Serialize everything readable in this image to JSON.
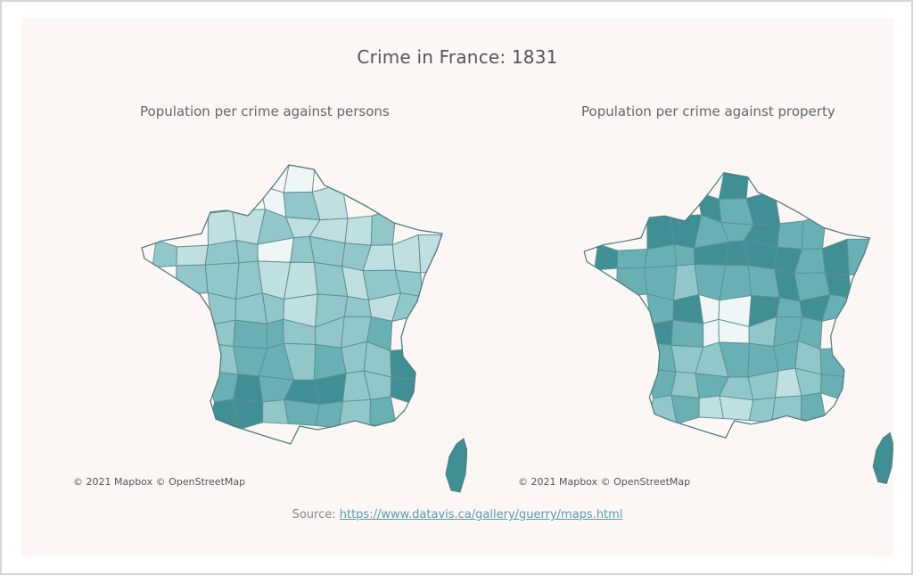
{
  "title": "Crime in France: 1831",
  "maps": [
    {
      "subtitle": "Population per crime against persons",
      "attribution": "© 2021 Mapbox © OpenStreetMap"
    },
    {
      "subtitle": "Population per crime against property",
      "attribution": "© 2021 Mapbox © OpenStreetMap"
    }
  ],
  "source": {
    "prefix": "Source: ",
    "link": "https://www.datavis.ca/gallery/guerry/maps.html"
  },
  "colors": {
    "background": "#fcf7f4",
    "scale": [
      "#eef6f6",
      "#bfdfe0",
      "#92c7c9",
      "#68b0b3",
      "#3f8f95"
    ]
  }
}
